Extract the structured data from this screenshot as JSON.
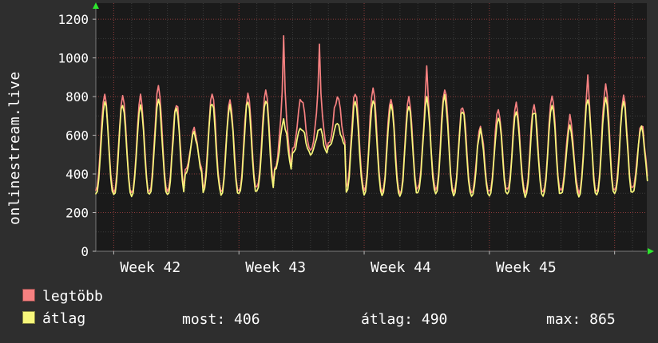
{
  "colors": {
    "bg": "#2e2e2e",
    "plot_bg": "#1a1a1a",
    "grid_minor": "#3c3c3c",
    "grid_major": "rgba(238,90,90,0.55)",
    "axis": "#7a7a7a",
    "arrow": "#2ee62e",
    "text": "#ffffff",
    "series_red": "#f78181",
    "series_yellow": "#f7f77b"
  },
  "chart_data": {
    "type": "line",
    "title": "",
    "ylabel": "onlinestream.live",
    "xlabel": "",
    "grid": true,
    "legend_position": "bottom-left",
    "ylim": [
      0,
      1250
    ],
    "y_ticks": [
      0,
      200,
      400,
      600,
      800,
      1000,
      1200
    ],
    "x_week_labels": [
      "Week 42",
      "Week 43",
      "Week 44",
      "Week 45"
    ],
    "week_start_days": [
      1,
      8,
      15,
      22,
      29
    ],
    "total_days": 30.8,
    "samples_per_day": 12,
    "series": [
      {
        "name": "legtöbb",
        "color": "#f78181",
        "peaks": [
          810,
          795,
          800,
          845,
          770,
          620,
          810,
          785,
          815,
          830,
          1130,
          795,
          1050,
          800,
          830,
          840,
          805,
          790,
          980,
          840,
          760,
          650,
          745,
          755,
          765,
          800,
          690,
          930,
          850,
          800,
          660
        ],
        "troughs": [
          320,
          305,
          300,
          315,
          310,
          420,
          330,
          305,
          315,
          335,
          430,
          530,
          520,
          560,
          330,
          315,
          305,
          300,
          330,
          320,
          310,
          300,
          310,
          318,
          300,
          308,
          318,
          300,
          310,
          318,
          330
        ]
      },
      {
        "name": "átlag",
        "color": "#f7f77b",
        "peaks": [
          780,
          765,
          770,
          790,
          735,
          600,
          775,
          755,
          780,
          790,
          665,
          645,
          630,
          655,
          780,
          790,
          770,
          760,
          785,
          800,
          730,
          630,
          705,
          720,
          730,
          765,
          660,
          790,
          800,
          770,
          640
        ],
        "troughs": [
          295,
          290,
          285,
          295,
          290,
          400,
          305,
          288,
          295,
          310,
          420,
          510,
          500,
          540,
          305,
          295,
          288,
          285,
          305,
          300,
          290,
          282,
          290,
          296,
          283,
          288,
          296,
          282,
          290,
          296,
          305
        ]
      }
    ],
    "stats": [
      "most: 406",
      "átlag: 490",
      "max: 865"
    ]
  }
}
